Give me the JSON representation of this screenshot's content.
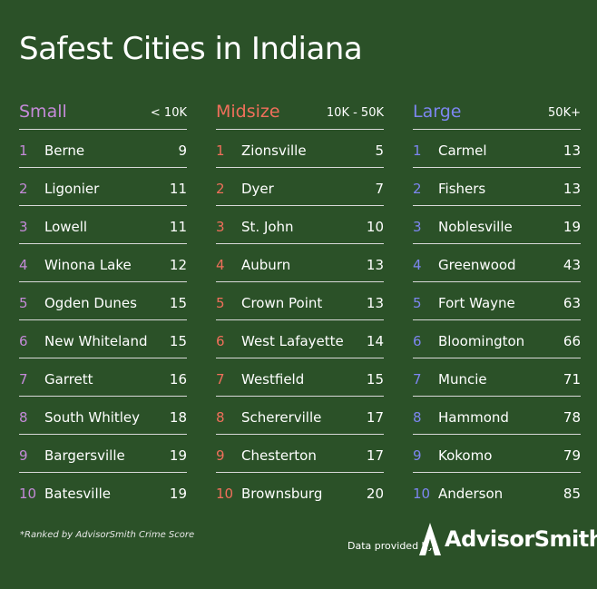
{
  "title": "Safest Cities in Indiana",
  "colors": {
    "small": "#c48ad8",
    "midsize": "#f06f5b",
    "large": "#7d86f0",
    "background": "#2b5128"
  },
  "columns": [
    {
      "name": "Small",
      "range": "< 10K",
      "rows": [
        {
          "rank": "1",
          "city": "Berne",
          "score": "9"
        },
        {
          "rank": "2",
          "city": "Ligonier",
          "score": "11"
        },
        {
          "rank": "3",
          "city": "Lowell",
          "score": "11"
        },
        {
          "rank": "4",
          "city": "Winona Lake",
          "score": "12"
        },
        {
          "rank": "5",
          "city": "Ogden Dunes",
          "score": "15"
        },
        {
          "rank": "6",
          "city": "New Whiteland",
          "score": "15"
        },
        {
          "rank": "7",
          "city": "Garrett",
          "score": "16"
        },
        {
          "rank": "8",
          "city": "South Whitley",
          "score": "18"
        },
        {
          "rank": "9",
          "city": "Bargersville",
          "score": "19"
        },
        {
          "rank": "10",
          "city": "Batesville",
          "score": "19"
        }
      ]
    },
    {
      "name": "Midsize",
      "range": "10K - 50K",
      "rows": [
        {
          "rank": "1",
          "city": "Zionsville",
          "score": "5"
        },
        {
          "rank": "2",
          "city": "Dyer",
          "score": "7"
        },
        {
          "rank": "3",
          "city": "St. John",
          "score": "10"
        },
        {
          "rank": "4",
          "city": "Auburn",
          "score": "13"
        },
        {
          "rank": "5",
          "city": "Crown Point",
          "score": "13"
        },
        {
          "rank": "6",
          "city": "West Lafayette",
          "score": "14"
        },
        {
          "rank": "7",
          "city": "Westfield",
          "score": "15"
        },
        {
          "rank": "8",
          "city": "Schererville",
          "score": "17"
        },
        {
          "rank": "9",
          "city": "Chesterton",
          "score": "17"
        },
        {
          "rank": "10",
          "city": "Brownsburg",
          "score": "20"
        }
      ]
    },
    {
      "name": "Large",
      "range": "50K+",
      "rows": [
        {
          "rank": "1",
          "city": "Carmel",
          "score": "13"
        },
        {
          "rank": "2",
          "city": "Fishers",
          "score": "13"
        },
        {
          "rank": "3",
          "city": "Noblesville",
          "score": "19"
        },
        {
          "rank": "4",
          "city": "Greenwood",
          "score": "43"
        },
        {
          "rank": "5",
          "city": "Fort Wayne",
          "score": "63"
        },
        {
          "rank": "6",
          "city": "Bloomington",
          "score": "66"
        },
        {
          "rank": "7",
          "city": "Muncie",
          "score": "71"
        },
        {
          "rank": "8",
          "city": "Hammond",
          "score": "78"
        },
        {
          "rank": "9",
          "city": "Kokomo",
          "score": "79"
        },
        {
          "rank": "10",
          "city": "Anderson",
          "score": "85"
        }
      ]
    }
  ],
  "footnote": "*Ranked by AdvisorSmith Crime Score",
  "provided_by": "Data provided by",
  "logo": {
    "text": "AdvisorSmith",
    "icon": "advisorsmith-a-logo-icon"
  }
}
